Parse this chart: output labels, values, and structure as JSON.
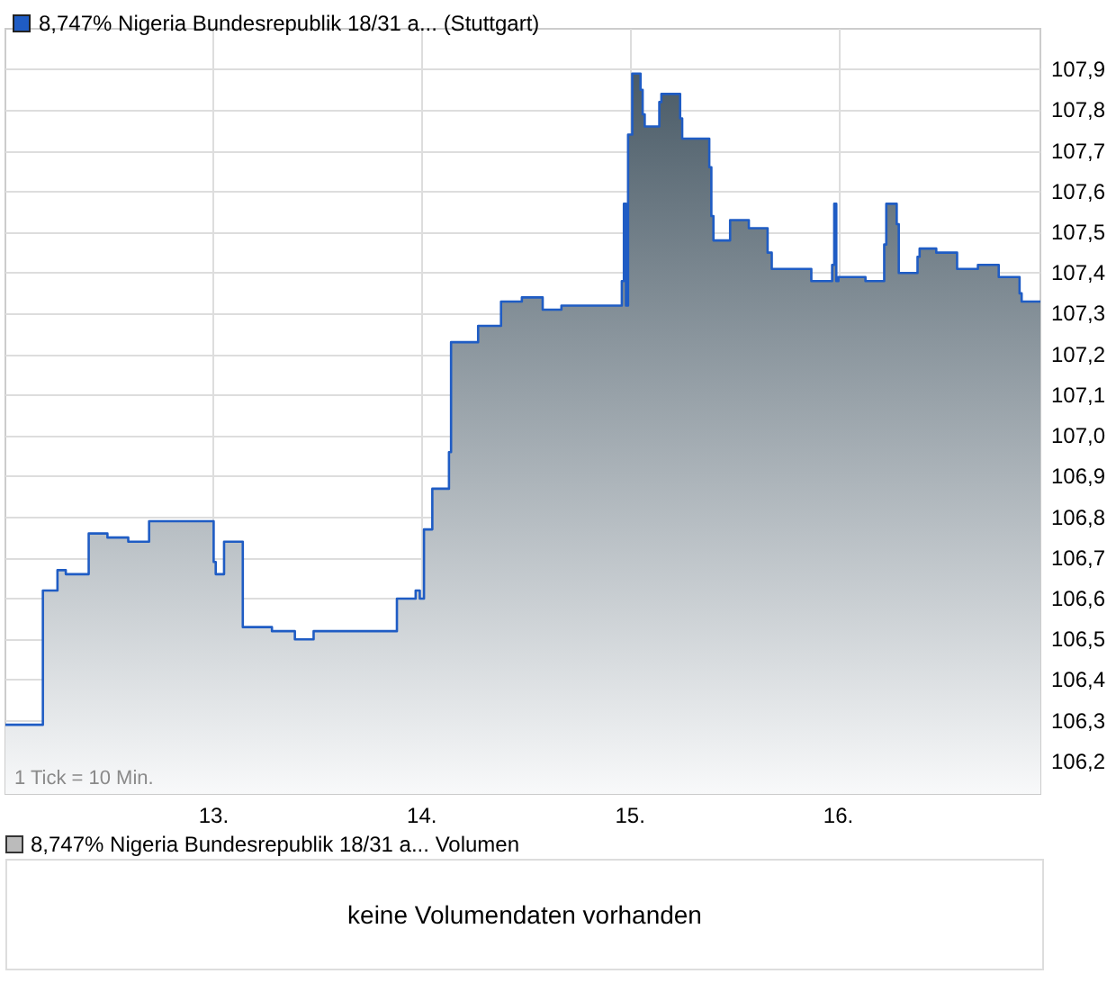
{
  "chart_data": [
    {
      "type": "area",
      "legend": "top left",
      "grid": true,
      "marker": "none",
      "annotations": [
        "1 Tick = 10 Min."
      ],
      "xlim": [
        12.0,
        16.97
      ],
      "xticks": [
        {
          "value": 13,
          "label": "13."
        },
        {
          "value": 14,
          "label": "14."
        },
        {
          "value": 15,
          "label": "15."
        },
        {
          "value": 16,
          "label": "16."
        }
      ],
      "ylim": [
        106.12,
        108.0
      ],
      "yticks": [
        {
          "value": 106.2,
          "label": "106,2"
        },
        {
          "value": 106.3,
          "label": "106,3"
        },
        {
          "value": 106.4,
          "label": "106,4"
        },
        {
          "value": 106.5,
          "label": "106,5"
        },
        {
          "value": 106.6,
          "label": "106,6"
        },
        {
          "value": 106.7,
          "label": "106,7"
        },
        {
          "value": 106.8,
          "label": "106,8"
        },
        {
          "value": 106.9,
          "label": "106,9"
        },
        {
          "value": 107.0,
          "label": "107,0"
        },
        {
          "value": 107.1,
          "label": "107,1"
        },
        {
          "value": 107.2,
          "label": "107,2"
        },
        {
          "value": 107.3,
          "label": "107,3"
        },
        {
          "value": 107.4,
          "label": "107,4"
        },
        {
          "value": 107.5,
          "label": "107,5"
        },
        {
          "value": 107.6,
          "label": "107,6"
        },
        {
          "value": 107.7,
          "label": "107,7"
        },
        {
          "value": 107.8,
          "label": "107,8"
        },
        {
          "value": 107.9,
          "label": "107,9"
        }
      ],
      "series": [
        {
          "name": "8,747% Nigeria Bundesrepublik 18/31 a... (Stuttgart)",
          "color": "#1f5cc4",
          "x": [
            12.0,
            12.18,
            12.18,
            12.25,
            12.25,
            12.29,
            12.29,
            12.4,
            12.4,
            12.49,
            12.49,
            12.59,
            12.59,
            12.69,
            12.69,
            13.0,
            13.0,
            13.01,
            13.01,
            13.05,
            13.05,
            13.14,
            13.14,
            13.28,
            13.28,
            13.39,
            13.39,
            13.48,
            13.48,
            13.88,
            13.88,
            13.97,
            13.97,
            13.99,
            13.99,
            14.01,
            14.01,
            14.05,
            14.05,
            14.13,
            14.13,
            14.14,
            14.14,
            14.27,
            14.27,
            14.38,
            14.38,
            14.48,
            14.48,
            14.58,
            14.58,
            14.67,
            14.67,
            14.96,
            14.96,
            14.97,
            14.97,
            14.98,
            14.98,
            14.99,
            14.99,
            15.01,
            15.01,
            15.05,
            15.05,
            15.06,
            15.06,
            15.07,
            15.07,
            15.14,
            15.14,
            15.15,
            15.15,
            15.24,
            15.24,
            15.25,
            15.25,
            15.38,
            15.38,
            15.39,
            15.39,
            15.4,
            15.4,
            15.48,
            15.48,
            15.57,
            15.57,
            15.66,
            15.66,
            15.68,
            15.68,
            15.87,
            15.87,
            15.97,
            15.97,
            15.98,
            15.98,
            15.99,
            15.99,
            16.0,
            16.0,
            16.13,
            16.13,
            16.22,
            16.22,
            16.23,
            16.23,
            16.28,
            16.28,
            16.29,
            16.29,
            16.38,
            16.38,
            16.39,
            16.39,
            16.47,
            16.47,
            16.57,
            16.57,
            16.67,
            16.67,
            16.77,
            16.77,
            16.87,
            16.87,
            16.88,
            16.88,
            16.97
          ],
          "values": [
            106.29,
            106.29,
            106.62,
            106.62,
            106.67,
            106.67,
            106.66,
            106.66,
            106.76,
            106.76,
            106.75,
            106.75,
            106.74,
            106.74,
            106.79,
            106.79,
            106.69,
            106.69,
            106.66,
            106.66,
            106.74,
            106.74,
            106.53,
            106.53,
            106.52,
            106.52,
            106.5,
            106.5,
            106.52,
            106.52,
            106.6,
            106.6,
            106.62,
            106.62,
            106.6,
            106.6,
            106.77,
            106.77,
            106.87,
            106.87,
            106.96,
            106.96,
            107.23,
            107.23,
            107.27,
            107.27,
            107.33,
            107.33,
            107.34,
            107.34,
            107.31,
            107.31,
            107.32,
            107.32,
            107.38,
            107.38,
            107.57,
            107.57,
            107.32,
            107.32,
            107.74,
            107.74,
            107.89,
            107.89,
            107.85,
            107.85,
            107.79,
            107.79,
            107.76,
            107.76,
            107.82,
            107.82,
            107.84,
            107.84,
            107.78,
            107.78,
            107.73,
            107.73,
            107.66,
            107.66,
            107.54,
            107.54,
            107.48,
            107.48,
            107.53,
            107.53,
            107.51,
            107.51,
            107.45,
            107.45,
            107.41,
            107.41,
            107.38,
            107.38,
            107.42,
            107.42,
            107.57,
            107.57,
            107.38,
            107.38,
            107.39,
            107.39,
            107.38,
            107.38,
            107.47,
            107.47,
            107.57,
            107.57,
            107.52,
            107.52,
            107.4,
            107.4,
            107.44,
            107.44,
            107.46,
            107.46,
            107.45,
            107.45,
            107.41,
            107.41,
            107.42,
            107.42,
            107.39,
            107.39,
            107.35,
            107.35,
            107.33,
            107.33
          ]
        }
      ]
    },
    {
      "type": "other",
      "title": "8,747% Nigeria Bundesrepublik 18/31 a... Volumen",
      "annotations": [
        "keine Volumendaten vorhanden"
      ]
    }
  ]
}
